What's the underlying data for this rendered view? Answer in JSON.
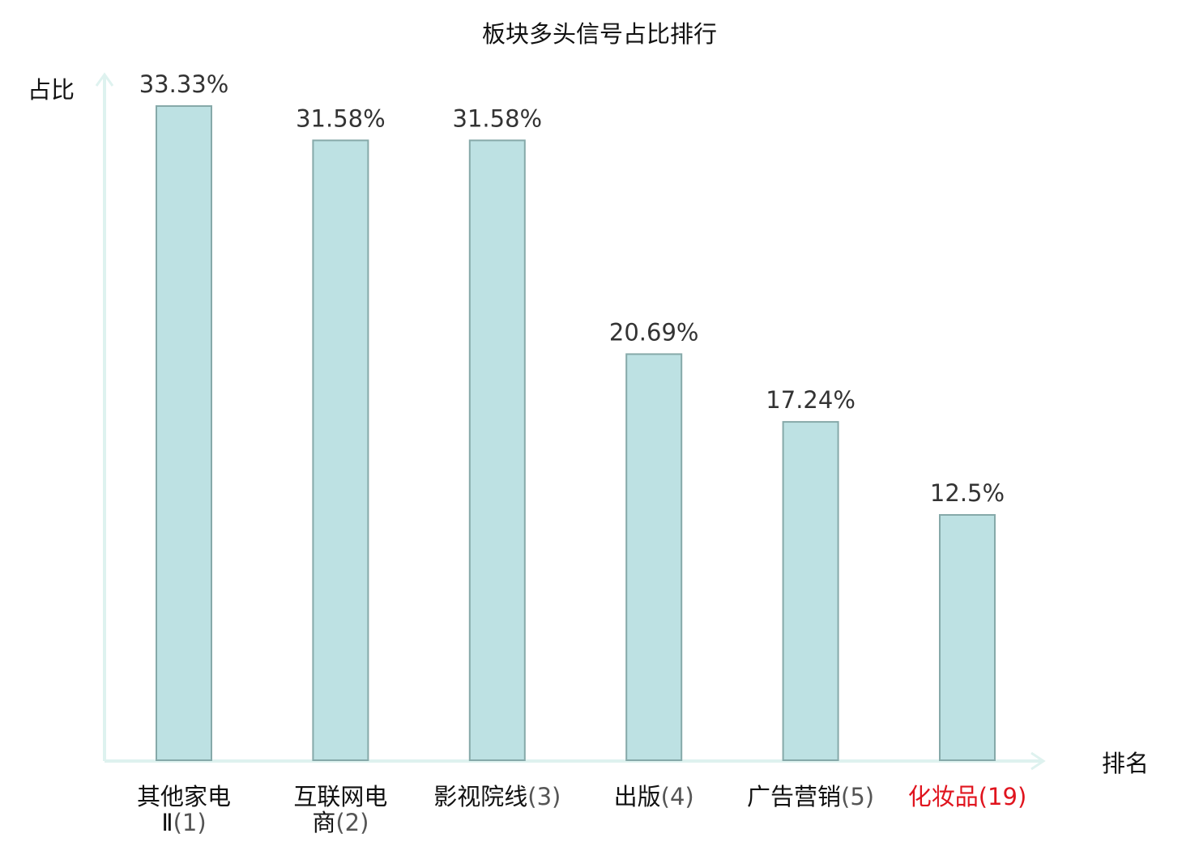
{
  "chart_data": {
    "type": "bar",
    "title": "板块多头信号占比排行",
    "xlabel": "排名",
    "ylabel": "占比",
    "categories": [
      {
        "name_lines": [
          "其他家电",
          "Ⅱ"
        ],
        "rank": "(1)",
        "highlight": false
      },
      {
        "name_lines": [
          "互联网电",
          "商"
        ],
        "rank": "(2)",
        "highlight": false
      },
      {
        "name_lines": [
          "影视院线"
        ],
        "rank": "(3)",
        "highlight": false
      },
      {
        "name_lines": [
          "出版"
        ],
        "rank": "(4)",
        "highlight": false
      },
      {
        "name_lines": [
          "广告营销"
        ],
        "rank": "(5)",
        "highlight": false
      },
      {
        "name_lines": [
          "化妆品"
        ],
        "rank": "(19)",
        "highlight": true
      }
    ],
    "values": [
      33.33,
      31.58,
      31.58,
      20.69,
      17.24,
      12.5
    ],
    "value_labels": [
      "33.33%",
      "31.58%",
      "31.58%",
      "20.69%",
      "17.24%",
      "12.5%"
    ],
    "ylim": [
      0,
      35
    ],
    "grid": false,
    "legend": "none",
    "colors": {
      "bar_fill": "#bde1e3",
      "bar_stroke": "#86a9a9",
      "axis": "#def2ef",
      "text": "#111111",
      "value_label": "#333333",
      "rank_label": "#555555",
      "highlight": "#e0141e"
    }
  }
}
